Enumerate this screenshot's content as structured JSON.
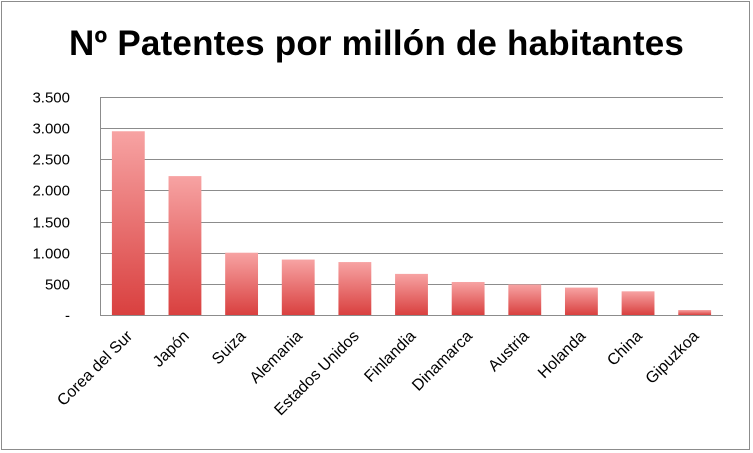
{
  "chart_data": {
    "type": "bar",
    "title": "Nº Patentes por millón de habitantes",
    "xlabel": "",
    "ylabel": "",
    "ylim": [
      0,
      3500
    ],
    "yticks": [
      0,
      500,
      1000,
      1500,
      2000,
      2500,
      3000,
      3500
    ],
    "ytick_labels": [
      "-",
      "500",
      "1.000",
      "1.500",
      "2.000",
      "2.500",
      "3.000",
      "3.500"
    ],
    "categories": [
      "Corea del Sur",
      "Japón",
      "Suiza",
      "Alemania",
      "Estados Unidos",
      "Finlandia",
      "Dinamarca",
      "Austria",
      "Holanda",
      "China",
      "Gipuzkoa"
    ],
    "values": [
      2950,
      2230,
      1000,
      890,
      850,
      660,
      530,
      490,
      440,
      380,
      80
    ],
    "grid": true,
    "legend": "none",
    "colors": {
      "bar_top": "#f7a3a3",
      "bar_bottom": "#d9403f",
      "grid": "#8c8c8c",
      "axis": "#8c8c8c"
    }
  }
}
